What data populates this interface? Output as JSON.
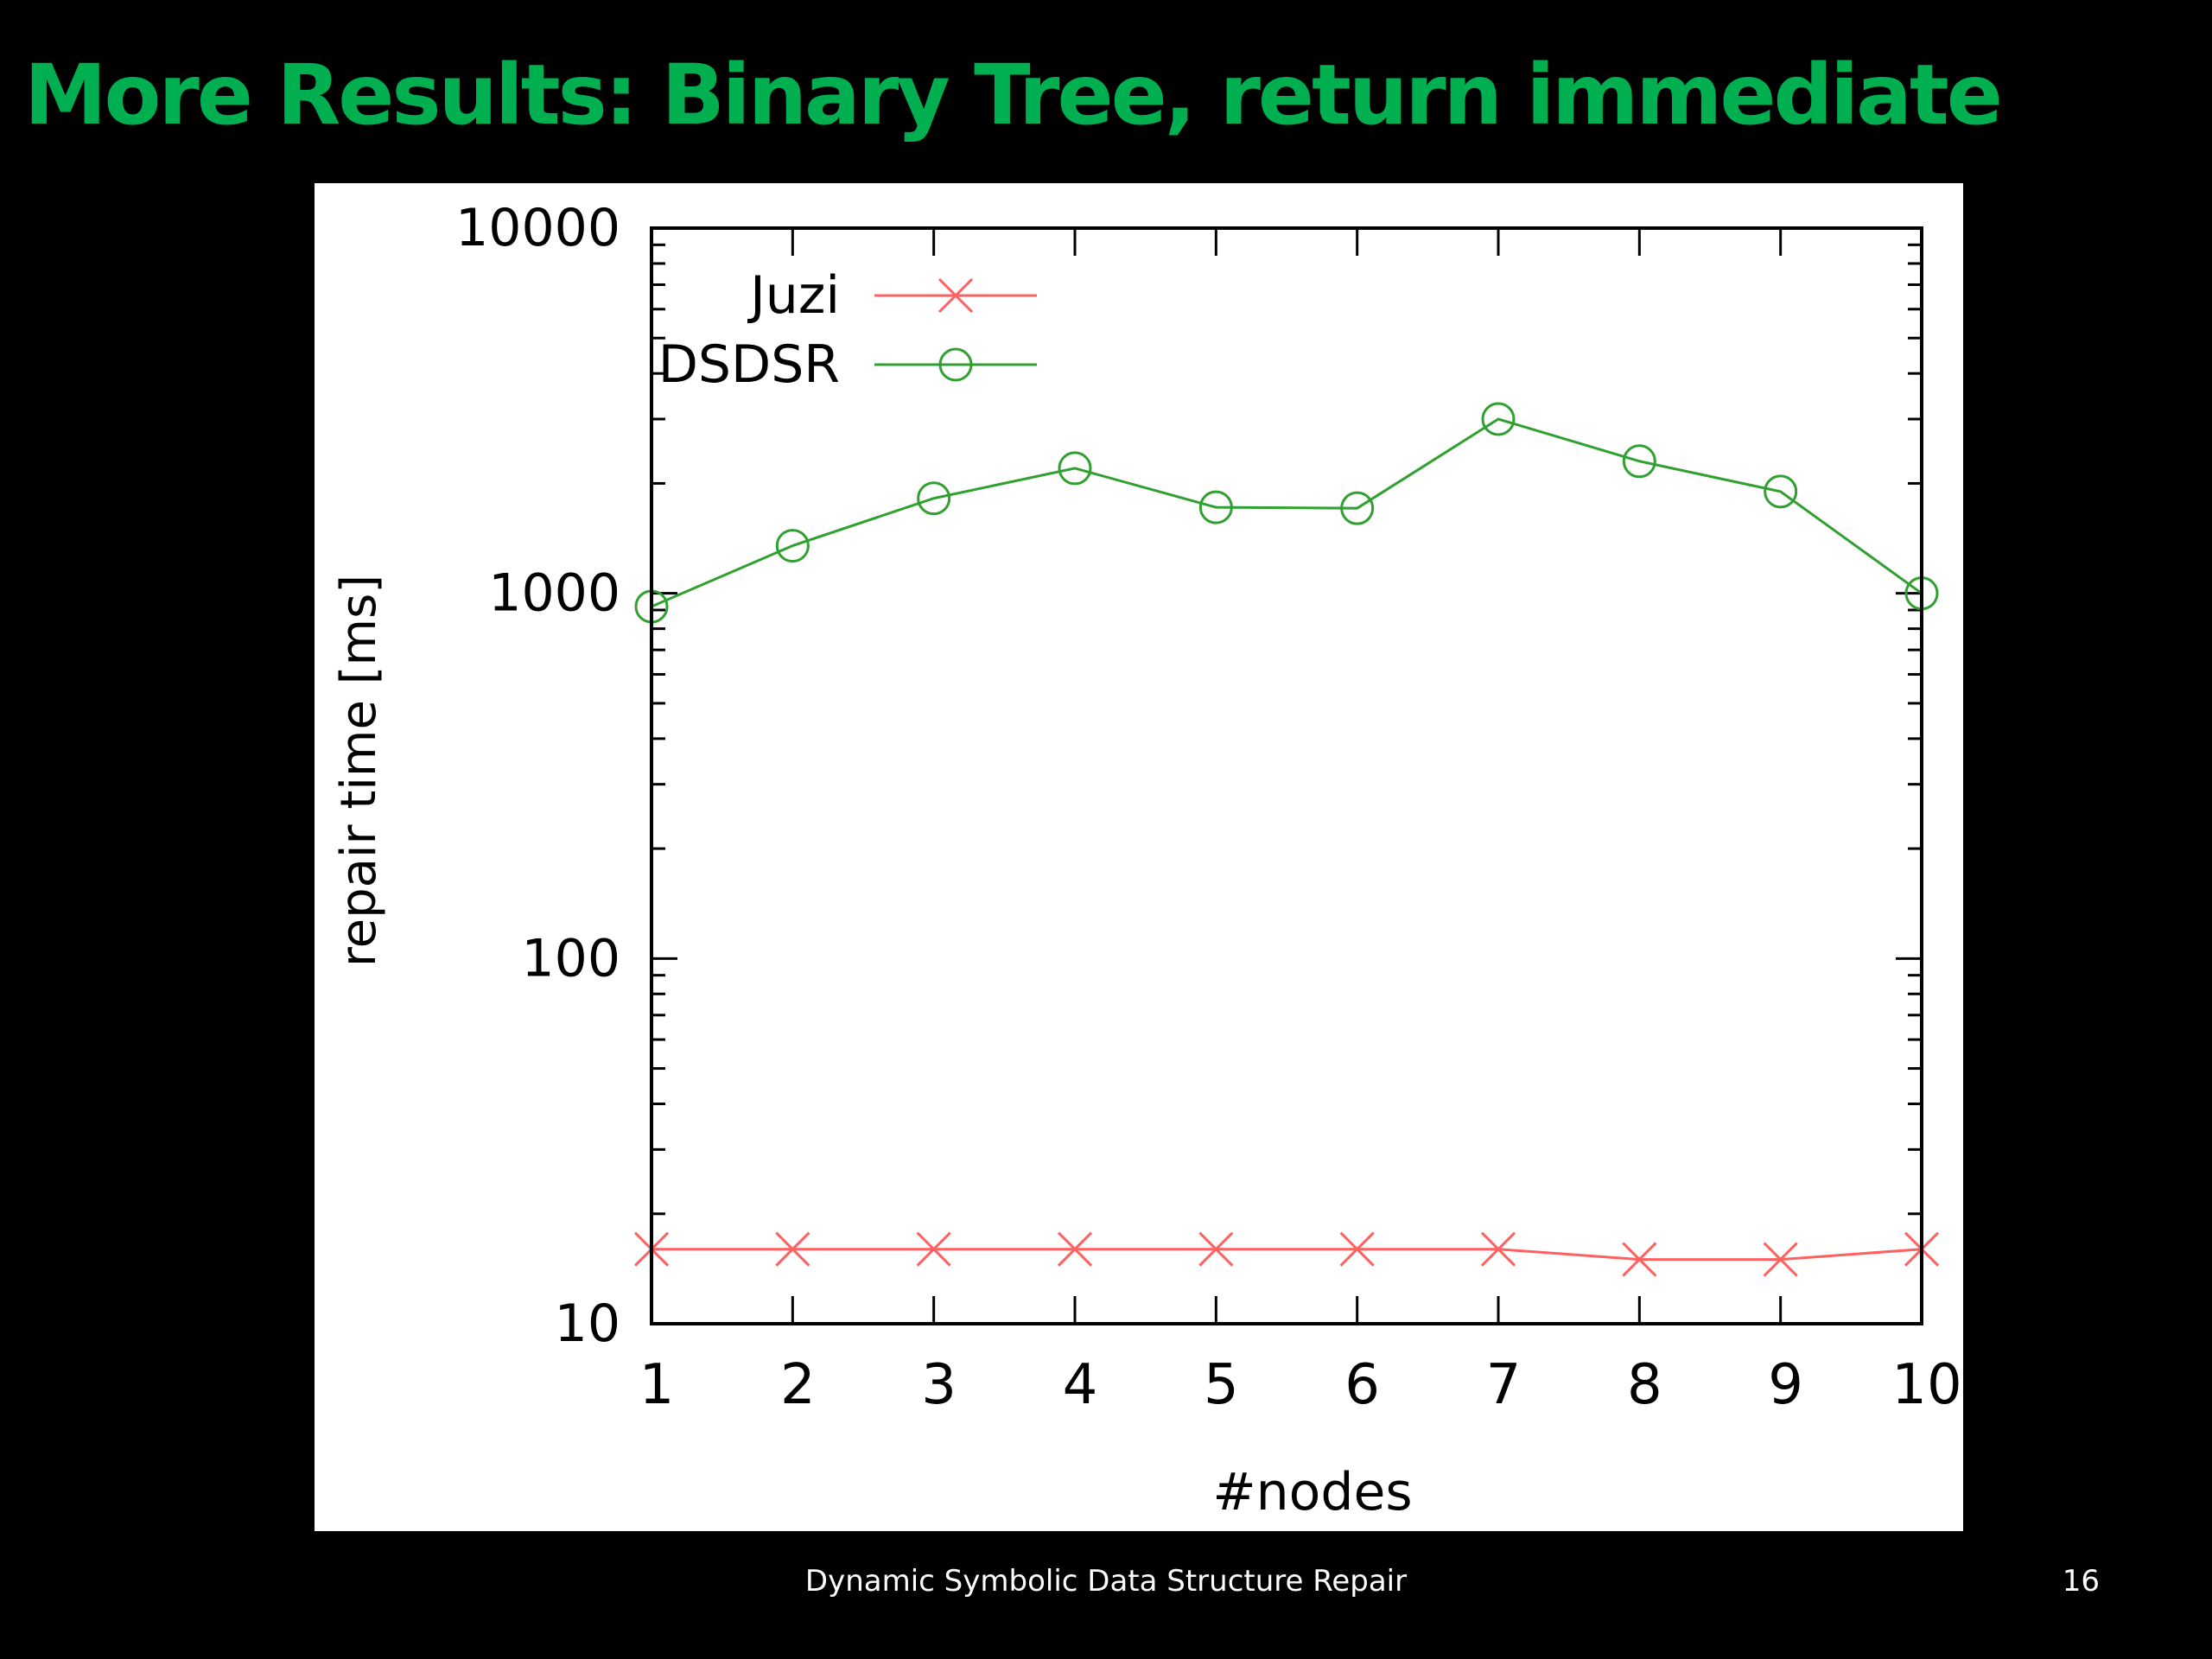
{
  "slide": {
    "title": "More Results: Binary Tree, return immediate",
    "footer": "Dynamic Symbolic Data Structure Repair",
    "page_number": "16"
  },
  "colors": {
    "background": "#000000",
    "title": "#00b050",
    "panel": "#ffffff",
    "juzi": "#ff6060",
    "dsdsr": "#30a030",
    "axis": "#000000"
  },
  "chart_data": {
    "type": "line",
    "title": "",
    "xlabel": "#nodes",
    "ylabel": "repair time [ms]",
    "x": [
      1,
      2,
      3,
      4,
      5,
      6,
      7,
      8,
      9,
      10
    ],
    "x_tick_labels": [
      "1",
      "2",
      "3",
      "4",
      "5",
      "6",
      "7",
      "8",
      "9",
      "10"
    ],
    "y_scale": "log",
    "ylim": [
      10,
      10000
    ],
    "y_tick_labels": [
      "10",
      "100",
      "1000",
      "10000"
    ],
    "y_tick_values": [
      10,
      100,
      1000,
      10000
    ],
    "grid": false,
    "legend_position": "top-left",
    "series": [
      {
        "name": "Juzi",
        "marker": "x",
        "color": "#ff6060",
        "values": [
          16,
          16,
          16,
          16,
          16,
          16,
          16,
          15,
          15,
          16
        ]
      },
      {
        "name": "DSDSR",
        "marker": "circle",
        "color": "#30a030",
        "values": [
          920,
          1350,
          1820,
          2200,
          1720,
          1710,
          3000,
          2300,
          1900,
          1000
        ]
      }
    ]
  }
}
